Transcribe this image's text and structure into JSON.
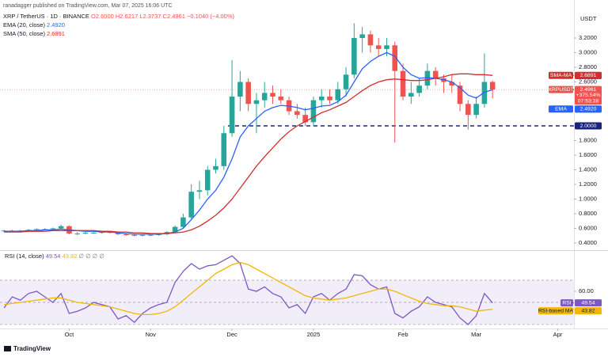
{
  "header": {
    "publisher": "ranadagger published on TradingView.com, Mar 07, 2025 16:06 UTC",
    "brand": "TradingView"
  },
  "chart_data": [
    {
      "type": "candlestick",
      "symbol": "XRP / TetherUS · 1D · BINANCE",
      "ohlc_label": "O2.6000 H2.6217 L2.3737 C2.4961 −0.1040 (−4.00%)",
      "y_axis_label": "USDT",
      "up_color": "#26a69a",
      "down_color": "#ef5350",
      "open": [
        0.56,
        0.57,
        0.56,
        0.57,
        0.58,
        0.59,
        0.59,
        0.6,
        0.63,
        0.53,
        0.53,
        0.54,
        0.54,
        0.55,
        0.54,
        0.52,
        0.51,
        0.5,
        0.51,
        0.51,
        0.52,
        0.55,
        0.62,
        0.75,
        1.1,
        1.12,
        1.4,
        1.45,
        1.9,
        2.4,
        2.6,
        2.3,
        2.35,
        2.45,
        2.4,
        2.35,
        2.2,
        2.15,
        2.05,
        2.35,
        2.4,
        2.35,
        2.5,
        2.7,
        3.2,
        3.25,
        3.1,
        3.05,
        3.1,
        2.75,
        2.4,
        2.45,
        2.55,
        2.75,
        2.65,
        2.6,
        2.55,
        2.3,
        2.15,
        2.3,
        2.6
      ],
      "high": [
        0.58,
        0.58,
        0.58,
        0.59,
        0.6,
        0.6,
        0.61,
        0.65,
        0.64,
        0.55,
        0.55,
        0.55,
        0.56,
        0.56,
        0.55,
        0.53,
        0.52,
        0.52,
        0.52,
        0.53,
        0.56,
        0.64,
        0.8,
        1.2,
        1.25,
        1.45,
        1.55,
        2.0,
        2.9,
        2.75,
        2.65,
        2.45,
        2.6,
        2.55,
        2.5,
        2.4,
        2.3,
        2.25,
        2.4,
        2.5,
        2.5,
        2.6,
        2.8,
        3.4,
        3.35,
        3.3,
        3.2,
        3.2,
        3.15,
        2.85,
        2.6,
        2.65,
        2.85,
        2.8,
        2.7,
        2.7,
        2.6,
        2.35,
        2.4,
        2.99,
        2.6217
      ],
      "low": [
        0.55,
        0.55,
        0.55,
        0.56,
        0.57,
        0.58,
        0.58,
        0.59,
        0.52,
        0.51,
        0.52,
        0.53,
        0.53,
        0.53,
        0.51,
        0.5,
        0.49,
        0.49,
        0.5,
        0.5,
        0.51,
        0.54,
        0.6,
        0.73,
        1.0,
        1.05,
        1.35,
        1.4,
        1.85,
        2.2,
        2.2,
        1.9,
        2.25,
        2.3,
        2.3,
        2.15,
        2.1,
        2.0,
        2.0,
        2.25,
        2.3,
        2.3,
        2.4,
        2.65,
        3.0,
        3.0,
        2.95,
        2.95,
        1.77,
        2.35,
        2.3,
        2.4,
        2.5,
        2.55,
        2.45,
        2.45,
        2.2,
        1.95,
        2.1,
        2.25,
        2.3737
      ],
      "close": [
        0.57,
        0.56,
        0.57,
        0.58,
        0.59,
        0.59,
        0.6,
        0.63,
        0.53,
        0.53,
        0.54,
        0.54,
        0.55,
        0.54,
        0.52,
        0.51,
        0.5,
        0.51,
        0.51,
        0.52,
        0.55,
        0.62,
        0.75,
        1.1,
        1.12,
        1.4,
        1.45,
        1.9,
        2.4,
        2.6,
        2.3,
        2.35,
        2.45,
        2.4,
        2.35,
        2.2,
        2.15,
        2.05,
        2.35,
        2.4,
        2.35,
        2.5,
        2.7,
        3.2,
        3.25,
        3.1,
        3.05,
        3.1,
        2.75,
        2.4,
        2.45,
        2.55,
        2.75,
        2.65,
        2.6,
        2.55,
        2.3,
        2.15,
        2.3,
        2.6,
        2.4961
      ],
      "series": [
        {
          "name": "EMA (20, close)",
          "legend_value": "2.4920",
          "color": "#2962ff",
          "values": [
            0.56,
            0.56,
            0.56,
            0.57,
            0.57,
            0.58,
            0.58,
            0.59,
            0.58,
            0.57,
            0.56,
            0.56,
            0.55,
            0.55,
            0.54,
            0.53,
            0.52,
            0.52,
            0.52,
            0.52,
            0.53,
            0.55,
            0.6,
            0.72,
            0.85,
            1.0,
            1.12,
            1.3,
            1.55,
            1.85,
            2.0,
            2.1,
            2.2,
            2.25,
            2.28,
            2.27,
            2.25,
            2.22,
            2.24,
            2.27,
            2.28,
            2.33,
            2.42,
            2.6,
            2.78,
            2.88,
            2.95,
            3.0,
            2.95,
            2.8,
            2.7,
            2.65,
            2.66,
            2.65,
            2.63,
            2.6,
            2.52,
            2.42,
            2.38,
            2.46,
            2.492
          ]
        },
        {
          "name": "SMA (50, close)",
          "legend_value": "2.6891",
          "color": "#d32f2f",
          "values": [
            0.55,
            0.55,
            0.55,
            0.56,
            0.56,
            0.56,
            0.57,
            0.57,
            0.57,
            0.57,
            0.57,
            0.57,
            0.56,
            0.56,
            0.55,
            0.55,
            0.54,
            0.54,
            0.53,
            0.53,
            0.53,
            0.54,
            0.55,
            0.58,
            0.63,
            0.7,
            0.78,
            0.88,
            1.0,
            1.15,
            1.3,
            1.45,
            1.58,
            1.7,
            1.82,
            1.92,
            2.0,
            2.06,
            2.12,
            2.18,
            2.22,
            2.27,
            2.32,
            2.4,
            2.48,
            2.55,
            2.6,
            2.63,
            2.64,
            2.63,
            2.62,
            2.62,
            2.63,
            2.65,
            2.67,
            2.7,
            2.71,
            2.71,
            2.7,
            2.7,
            2.6891
          ]
        }
      ],
      "xlim": [
        -0.5,
        70
      ],
      "xticks": [
        {
          "value": 8,
          "label": "Oct"
        },
        {
          "value": 18,
          "label": "Nov"
        },
        {
          "value": 28,
          "label": "Dec"
        },
        {
          "value": 38,
          "label": "2025"
        },
        {
          "value": 49,
          "label": "Feb"
        },
        {
          "value": 58,
          "label": "Mar"
        },
        {
          "value": 68,
          "label": "Apr"
        }
      ],
      "ylim": [
        0.3135,
        3.557
      ],
      "yticks": [
        {
          "value": 3.2,
          "label": "3.2000"
        },
        {
          "value": 3.0,
          "label": "3.0000"
        },
        {
          "value": 2.8,
          "label": "2.8000"
        },
        {
          "value": 2.6,
          "label": "2.6000"
        },
        {
          "value": 1.8,
          "label": "1.8000"
        },
        {
          "value": 1.6,
          "label": "1.6000"
        },
        {
          "value": 1.4,
          "label": "1.4000"
        },
        {
          "value": 1.2,
          "label": "1.2000"
        },
        {
          "value": 1.0,
          "label": "1.0000"
        },
        {
          "value": 0.8,
          "label": "0.8000"
        },
        {
          "value": 0.6,
          "label": "0.6000"
        },
        {
          "value": 0.4,
          "label": "0.4000"
        }
      ],
      "hline": {
        "value": 2,
        "label": "2.0000",
        "from": 27.5,
        "color": "#1a237e"
      },
      "tags": [
        {
          "name": "SMA-MA",
          "value": 2.6891,
          "value_label": "2.6891",
          "color": "#d32f2f"
        },
        {
          "name": "XRPUSDT",
          "value": 2.4961,
          "value_label": "2.4961",
          "detail": [
            "+375.54%",
            "07:53:38"
          ],
          "color": "#ef5350"
        },
        {
          "name": "EMA",
          "value": 2.492,
          "value_label": "2.4920",
          "color": "#2962ff"
        }
      ]
    },
    {
      "type": "line",
      "title": "RSI (14, close)",
      "legend_extra": "∅ ∅ ∅ ∅",
      "series": [
        {
          "name": "RSI",
          "legend_value": "49.54",
          "color": "#7e57c2",
          "values": [
            45,
            55,
            52,
            58,
            60,
            55,
            50,
            58,
            40,
            42,
            45,
            50,
            48,
            46,
            35,
            38,
            32,
            40,
            45,
            48,
            50,
            68,
            78,
            85,
            80,
            83,
            84,
            88,
            92,
            85,
            62,
            60,
            64,
            58,
            55,
            45,
            48,
            40,
            55,
            58,
            52,
            58,
            62,
            75,
            74,
            66,
            62,
            64,
            40,
            36,
            42,
            46,
            55,
            50,
            48,
            46,
            36,
            30,
            38,
            58,
            49.54
          ]
        },
        {
          "name": "RSI-based MA",
          "legend_value": "43.82",
          "color": "#f2b705",
          "values": [
            48,
            49,
            50,
            51,
            52,
            53,
            54,
            54,
            52,
            50,
            49,
            48,
            47,
            46,
            44,
            42,
            40,
            39,
            39,
            40,
            42,
            46,
            52,
            58,
            64,
            70,
            76,
            80,
            84,
            86,
            84,
            80,
            76,
            72,
            68,
            64,
            60,
            56,
            54,
            53,
            52,
            53,
            54,
            56,
            58,
            60,
            62,
            62,
            60,
            57,
            54,
            51,
            49,
            48,
            47,
            47,
            46,
            44,
            42,
            43,
            43.82
          ]
        }
      ],
      "ylim": [
        26.4,
        95.7
      ],
      "yticks": [
        {
          "value": 60,
          "label": "60.00"
        }
      ],
      "levels": [
        70,
        50,
        30
      ]
    }
  ]
}
